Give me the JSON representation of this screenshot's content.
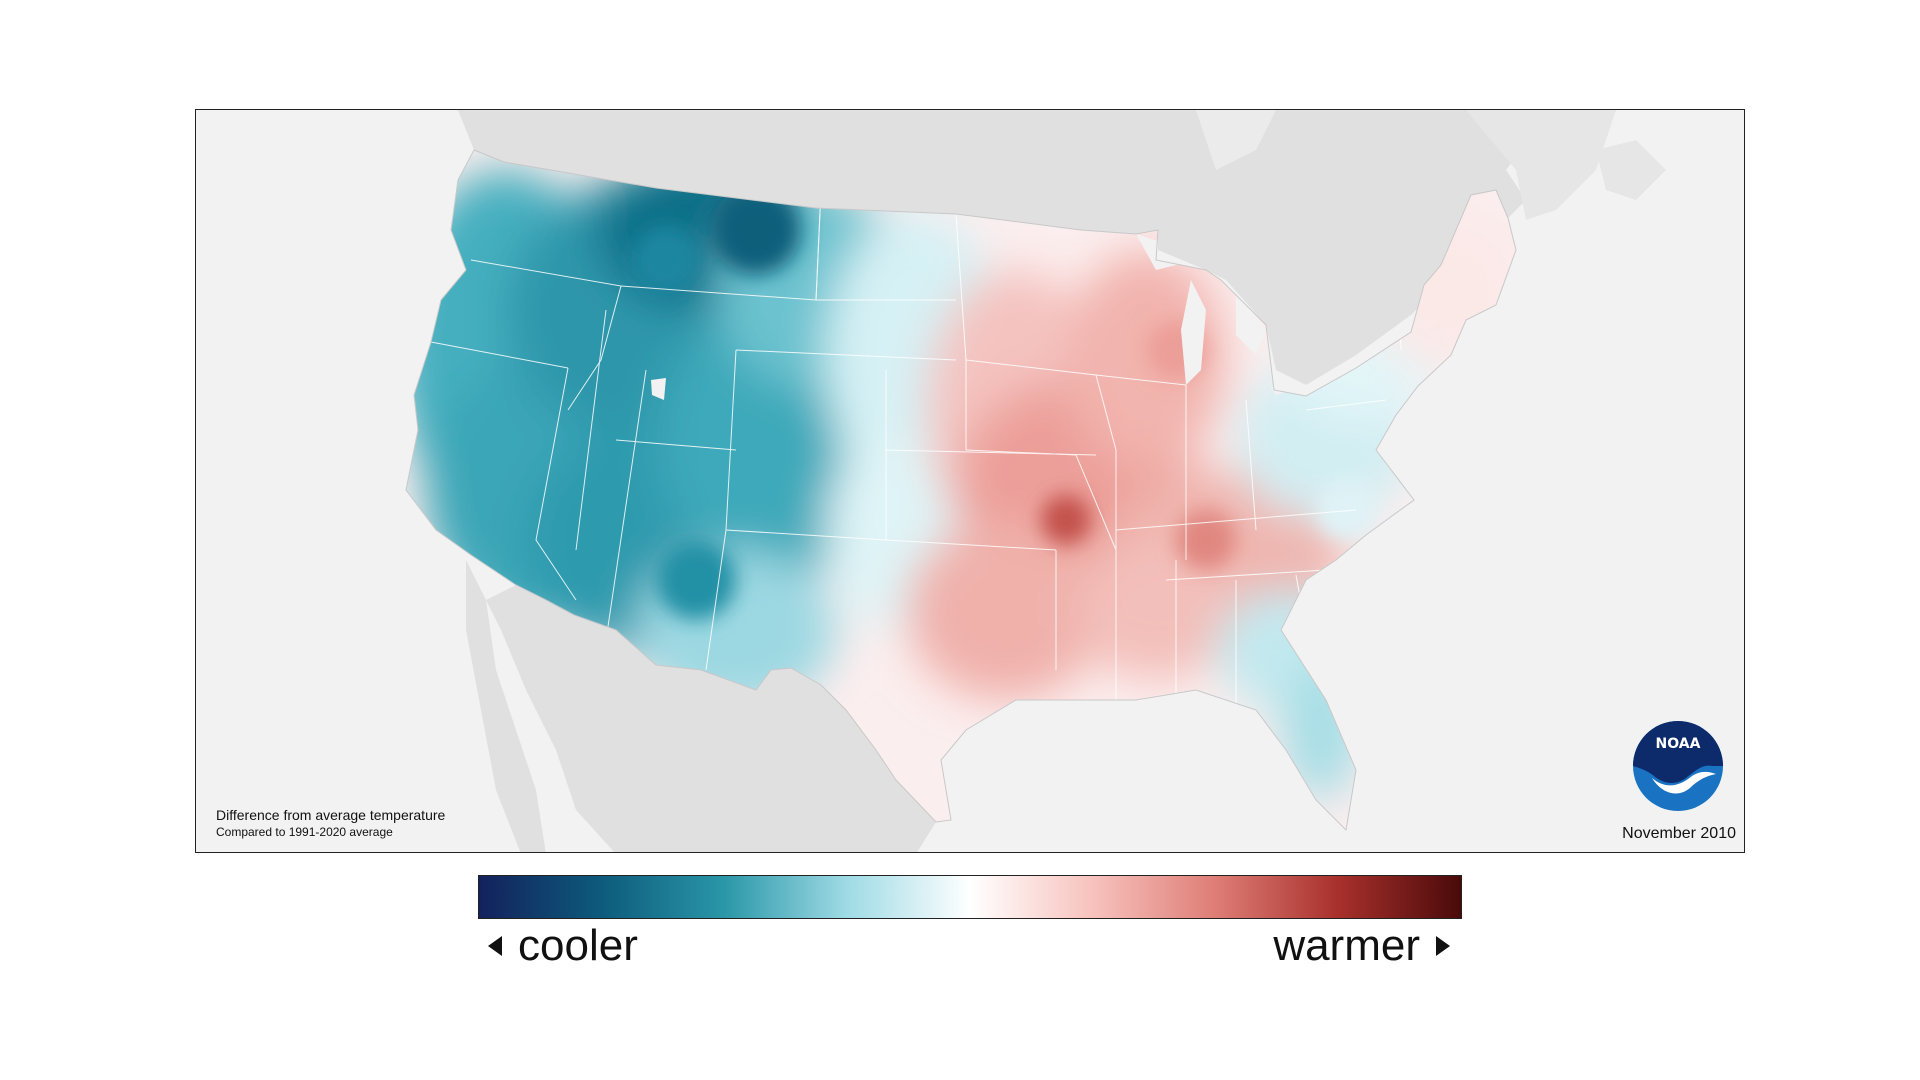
{
  "map": {
    "caption_title": "Difference from average temperature",
    "caption_subtitle": "Compared to 1991-2020 average",
    "date": "November 2010",
    "logo_text": "NOAA",
    "colors": {
      "ocean": "#f2f2f2",
      "neighbor_land": "#e0e0e0",
      "state_border": "#ffffff",
      "much_cooler": "#0a6f86",
      "cooler": "#3fa9b9",
      "slightly_cooler": "#c8ecf1",
      "neutral": "#ffffff",
      "slightly_warmer": "#f9d3d0",
      "warmer": "#ec9a94",
      "much_warmer": "#b53a36"
    }
  },
  "legend": {
    "cooler_label": "cooler",
    "warmer_label": "warmer",
    "gradient": [
      "#13215c",
      "#0d5b7c",
      "#2a97a8",
      "#9fdbe5",
      "#ffffff",
      "#f7c2bd",
      "#de7d76",
      "#a8302c",
      "#4a0a0a"
    ]
  }
}
